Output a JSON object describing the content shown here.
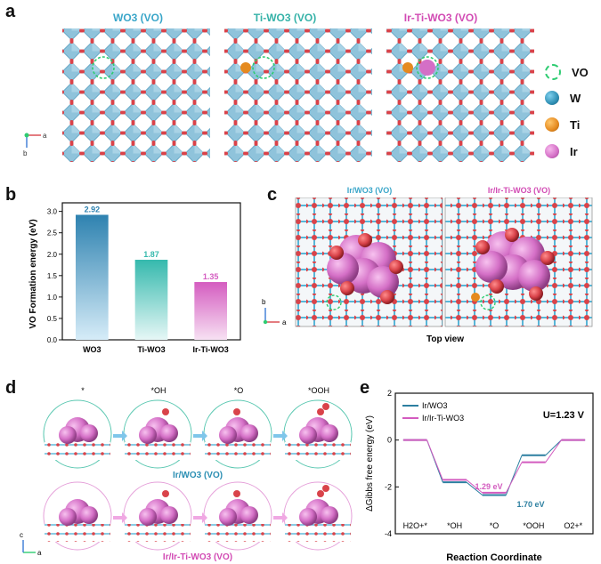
{
  "panel_labels": {
    "a": "a",
    "b": "b",
    "c": "c",
    "d": "d",
    "e": "e"
  },
  "panel_a": {
    "titles": [
      "WO3 (VO)",
      "Ti-WO3 (VO)",
      "Ir-Ti-WO3 (VO)"
    ],
    "axis_a": "a",
    "axis_b": "b",
    "legend": [
      {
        "symbol": "vacancy-ring",
        "label": "VO",
        "color": "#2ecc71"
      },
      {
        "symbol": "sphere",
        "label": "W",
        "color": "#2f8fb4"
      },
      {
        "symbol": "sphere",
        "label": "Ti",
        "color": "#e58a1f"
      },
      {
        "symbol": "sphere",
        "label": "Ir",
        "color": "#d46fc6"
      }
    ]
  },
  "panel_c": {
    "titles": [
      "Ir/WO3 (VO)",
      "Ir/Ir-Ti-WO3 (VO)"
    ],
    "caption": "Top view",
    "axis_a": "a",
    "axis_b": "b"
  },
  "panel_d": {
    "steps": [
      "*",
      "*OH",
      "*O",
      "*OOH"
    ],
    "row_labels": [
      "Ir/WO3 (VO)",
      "Ir/Ir-Ti-WO3 (VO)"
    ],
    "axis_x": "a",
    "axis_z": "c"
  },
  "chart_data": [
    {
      "type": "bar",
      "panel": "b",
      "categories": [
        "WO3",
        "Ti-WO3",
        "Ir-Ti-WO3"
      ],
      "values": [
        2.92,
        1.87,
        1.35
      ],
      "value_labels": [
        "2.92",
        "1.87",
        "1.35"
      ],
      "colors": [
        "#2e82b0",
        "#35b9ad",
        "#d45cc0"
      ],
      "ylabel": "VO Formation energy (eV)",
      "ylim": [
        0.0,
        3.2
      ],
      "yticks": [
        "0.0",
        "0.5",
        "1.0",
        "1.5",
        "2.0",
        "2.5",
        "3.0"
      ]
    },
    {
      "type": "line",
      "panel": "e",
      "x": [
        "H2O+*",
        "*OH",
        "*O",
        "*OOH",
        "O2+*"
      ],
      "series": [
        {
          "name": "Ir/WO3",
          "color": "#2c7fa0",
          "values": [
            0.0,
            -1.8,
            -2.35,
            -0.65,
            0.0
          ]
        },
        {
          "name": "Ir/Ir-Ti-WO3",
          "color": "#d35bbf",
          "values": [
            0.0,
            -1.7,
            -2.25,
            -0.95,
            0.0
          ]
        }
      ],
      "annotations": [
        {
          "text": "1.29 eV",
          "color": "#d35bbf"
        },
        {
          "text": "1.70 eV",
          "color": "#2c7fa0"
        }
      ],
      "condition": "U=1.23 V",
      "xlabel": "Reaction Coordinate",
      "ylabel": "ΔGibbs free energy (eV)",
      "ylim": [
        -4,
        2
      ],
      "yticks": [
        "2",
        "0",
        "-2",
        "-4"
      ]
    }
  ]
}
